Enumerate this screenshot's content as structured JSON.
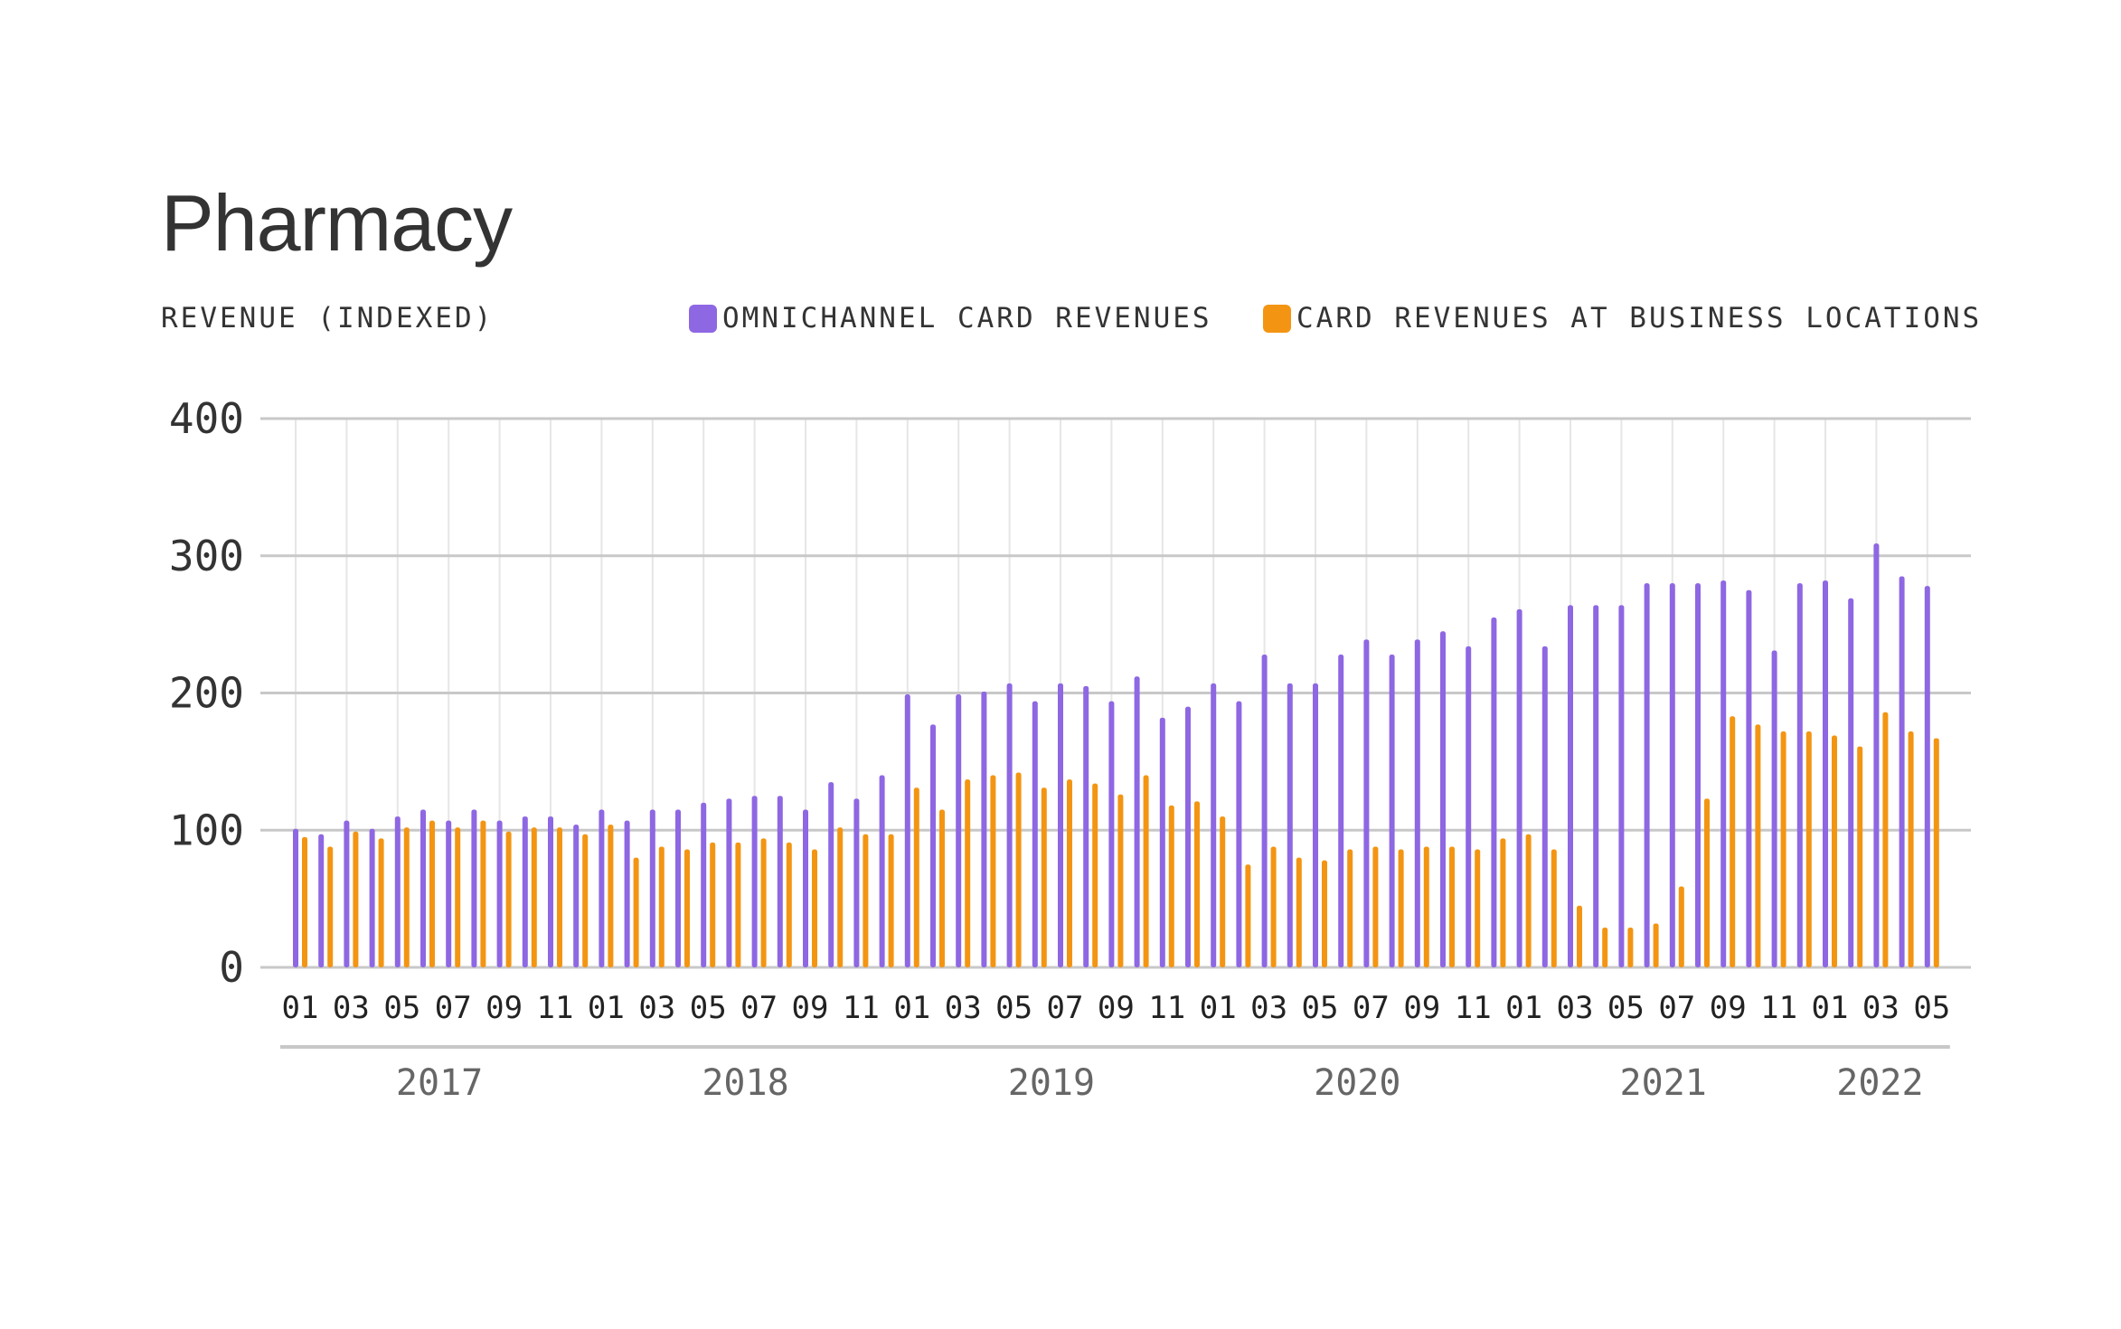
{
  "chart_data": {
    "type": "bar",
    "title": "Pharmacy",
    "ylabel": "REVENUE (INDEXED)",
    "ylim": [
      0,
      400
    ],
    "yticks": [
      "0",
      "100",
      "200",
      "300",
      "400"
    ],
    "grid": true,
    "legend_position": "top-right",
    "categories": [
      "2017-01",
      "2017-02",
      "2017-03",
      "2017-04",
      "2017-05",
      "2017-06",
      "2017-07",
      "2017-08",
      "2017-09",
      "2017-10",
      "2017-11",
      "2017-12",
      "2018-01",
      "2018-02",
      "2018-03",
      "2018-04",
      "2018-05",
      "2018-06",
      "2018-07",
      "2018-08",
      "2018-09",
      "2018-10",
      "2018-11",
      "2018-12",
      "2019-01",
      "2019-02",
      "2019-03",
      "2019-04",
      "2019-05",
      "2019-06",
      "2019-07",
      "2019-08",
      "2019-09",
      "2019-10",
      "2019-11",
      "2019-12",
      "2020-01",
      "2020-02",
      "2020-03",
      "2020-04",
      "2020-05",
      "2020-06",
      "2020-07",
      "2020-08",
      "2020-09",
      "2020-10",
      "2020-11",
      "2020-12",
      "2021-01",
      "2021-02",
      "2021-03",
      "2021-04",
      "2021-05",
      "2021-06",
      "2021-07",
      "2021-08",
      "2021-09",
      "2021-10",
      "2021-11",
      "2021-12",
      "2022-01",
      "2022-02",
      "2022-03",
      "2022-04",
      "2022-05"
    ],
    "month_tick_labels": [
      "01",
      "03",
      "05",
      "07",
      "09",
      "11",
      "01",
      "03",
      "05",
      "07",
      "09",
      "11",
      "01",
      "03",
      "05",
      "07",
      "09",
      "11",
      "01",
      "03",
      "05",
      "07",
      "09",
      "11",
      "01",
      "03",
      "05",
      "07",
      "09",
      "11",
      "01",
      "03",
      "05"
    ],
    "years": [
      "2017",
      "2018",
      "2019",
      "2020",
      "2021",
      "2022"
    ],
    "series": [
      {
        "name": "OMNICHANNEL CARD REVENUES",
        "color": "#8E67E3",
        "values": [
          101,
          97,
          107,
          101,
          110,
          115,
          107,
          115,
          107,
          110,
          110,
          104,
          115,
          107,
          115,
          115,
          120,
          123,
          125,
          125,
          115,
          135,
          123,
          140,
          199,
          177,
          199,
          201,
          207,
          194,
          207,
          205,
          194,
          212,
          182,
          190,
          207,
          194,
          228,
          207,
          207,
          228,
          239,
          228,
          239,
          245,
          234,
          255,
          261,
          234,
          264,
          264,
          264,
          280,
          280,
          280,
          282,
          275,
          231,
          280,
          282,
          269,
          309,
          285,
          278
        ]
      },
      {
        "name": "CARD REVENUES AT BUSINESS LOCATIONS",
        "color": "#F39512",
        "values": [
          95,
          88,
          99,
          94,
          102,
          107,
          102,
          107,
          99,
          102,
          102,
          97,
          104,
          80,
          88,
          86,
          91,
          91,
          94,
          91,
          86,
          102,
          97,
          97,
          131,
          115,
          137,
          140,
          142,
          131,
          137,
          134,
          126,
          140,
          118,
          121,
          110,
          75,
          88,
          80,
          78,
          86,
          88,
          86,
          88,
          88,
          86,
          94,
          97,
          86,
          45,
          29,
          29,
          32,
          59,
          123,
          183,
          177,
          172,
          172,
          169,
          161,
          186,
          172,
          167
        ]
      }
    ]
  }
}
